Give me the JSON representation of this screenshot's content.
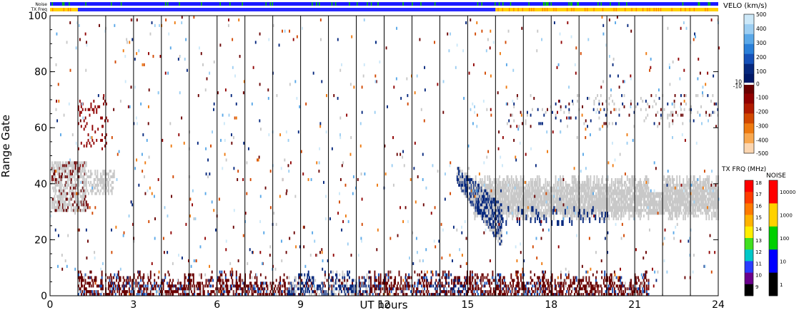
{
  "labels": {
    "noise_bar": "Noise",
    "txfreq_bar": "TX Freq",
    "velo_title": "VELO (km/s)",
    "txfreq_title": "TX FRQ (MHz)",
    "noise_title": "NOISE"
  },
  "chart_data": {
    "type": "heatmap",
    "xlabel": "UT hours",
    "ylabel": "Range Gate",
    "xlim": [
      0,
      24
    ],
    "ylim": [
      0,
      100
    ],
    "xticks": [
      0,
      3,
      6,
      9,
      12,
      15,
      18,
      21,
      24
    ],
    "yticks": [
      0,
      20,
      40,
      60,
      80,
      100
    ],
    "hour_lines": [
      1,
      2,
      3,
      4,
      5,
      6,
      7,
      8,
      9,
      10,
      11,
      12,
      13,
      14,
      15,
      16,
      17,
      18,
      19,
      20,
      21,
      22,
      23
    ],
    "velocity_scale": {
      "ticks": [
        "500",
        "400",
        "300",
        "200",
        "100",
        "10",
        "0",
        "-10",
        "-100",
        "-200",
        "-300",
        "-400",
        "-500"
      ],
      "colors_positive": [
        "#cce8f8",
        "#9ccef2",
        "#5aa8e8",
        "#2a7fd8",
        "#1550b8",
        "#06287e",
        "#001868"
      ],
      "colors_negative": [
        "#6a0000",
        "#900000",
        "#b01a00",
        "#d24800",
        "#ee7a10",
        "#f8a850",
        "#fcd6b0"
      ]
    },
    "txfreq_scale": {
      "ticks": [
        "18",
        "17",
        "16",
        "15",
        "14",
        "13",
        "12",
        "11",
        "10",
        "9"
      ],
      "colors": [
        "#ff0000",
        "#ff3c00",
        "#ff7a00",
        "#ffb300",
        "#ffee00",
        "#40e020",
        "#00c8c8",
        "#2a3cff",
        "#6a008c",
        "#000000"
      ]
    },
    "noise_scale": {
      "ticks": [
        "10000",
        "1000",
        "100",
        "10",
        "1"
      ],
      "colors": [
        "#ff0000",
        "#ffd200",
        "#00d000",
        "#0000ff",
        "#000000"
      ]
    },
    "txfreq_band": {
      "yellow_until_hour": 1.0,
      "blue_from_hour": 1.0,
      "blue_until_hour": 16.0,
      "yellow_after_hour": 16.0
    },
    "features": [
      {
        "name": "ground scatter band",
        "color": "#c8c8c8",
        "start_hour": 14.7,
        "end_hour": 24.0,
        "range_low": 27,
        "range_high": 42
      },
      {
        "name": "near-range band",
        "start_hour": 1.0,
        "end_hour": 21.0,
        "range_low": 0,
        "range_high": 8
      }
    ]
  }
}
